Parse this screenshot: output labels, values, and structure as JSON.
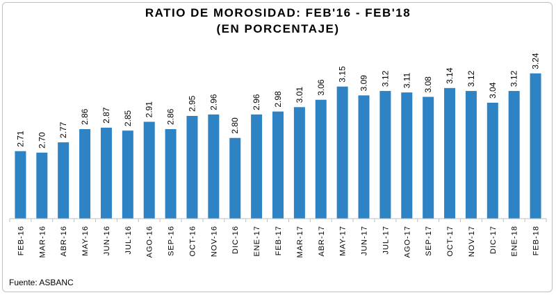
{
  "chart_data": {
    "type": "bar",
    "title": "RATIO DE MOROSIDAD: FEB'16 - FEB'18",
    "subtitle": "(EN PORCENTAJE)",
    "categories": [
      "FEB-16",
      "MAR-16",
      "ABR-16",
      "MAY-16",
      "JUN-16",
      "JUL-16",
      "AGO-16",
      "SEP-16",
      "OCT-16",
      "NOV-16",
      "DIC-16",
      "ENE-17",
      "FEB-17",
      "MAR-17",
      "ABR-17",
      "MAY-17",
      "JUN-17",
      "JUL-17",
      "AGO-17",
      "SEP-17",
      "OCT-17",
      "NOV-17",
      "DIC-17",
      "ENE-18",
      "FEB-18"
    ],
    "values": [
      2.71,
      2.7,
      2.77,
      2.86,
      2.87,
      2.85,
      2.91,
      2.86,
      2.95,
      2.96,
      2.8,
      2.96,
      2.98,
      3.01,
      3.06,
      3.15,
      3.09,
      3.12,
      3.11,
      3.08,
      3.14,
      3.12,
      3.04,
      3.12,
      3.24
    ],
    "value_labels": [
      "2.71",
      "2.70",
      "2.77",
      "2.86",
      "2.87",
      "2.85",
      "2.91",
      "2.86",
      "2.95",
      "2.96",
      "2.80",
      "2.96",
      "2.98",
      "3.01",
      "3.06",
      "3.15",
      "3.09",
      "3.12",
      "3.11",
      "3.08",
      "3.14",
      "3.12",
      "3.04",
      "3.12",
      "3.24"
    ],
    "ylim": [
      2.25,
      3.3
    ],
    "bar_color": "#2e83c5",
    "grid": false,
    "legend": "none"
  },
  "source": "Fuente: ASBANC"
}
